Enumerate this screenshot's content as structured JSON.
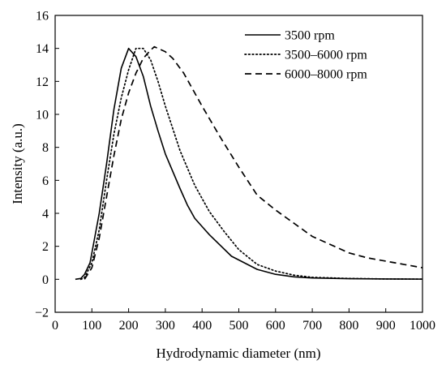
{
  "chart_data": {
    "type": "line",
    "xlabel": "Hydrodynamic diameter (nm)",
    "ylabel": "Intensity (a.u.)",
    "xlim": [
      0,
      1000
    ],
    "ylim": [
      -2,
      16
    ],
    "xticks": [
      0,
      100,
      200,
      300,
      400,
      500,
      600,
      700,
      800,
      900,
      1000
    ],
    "yticks": [
      -2,
      0,
      2,
      4,
      6,
      8,
      10,
      12,
      14,
      16
    ],
    "grid": false,
    "legend_position": "top-right",
    "series": [
      {
        "name": "3500 rpm",
        "line_style": "solid",
        "x": [
          55,
          70,
          80,
          95,
          120,
          140,
          160,
          180,
          200,
          220,
          240,
          260,
          280,
          300,
          340,
          360,
          380,
          420,
          480,
          550,
          600,
          650,
          700,
          800,
          900,
          1000
        ],
        "y": [
          0,
          0.05,
          0.3,
          1.0,
          4.0,
          7.0,
          10.3,
          12.8,
          14.0,
          13.5,
          12.3,
          10.5,
          9.0,
          7.6,
          5.5,
          4.5,
          3.7,
          2.7,
          1.4,
          0.6,
          0.3,
          0.15,
          0.08,
          0.04,
          0.02,
          0.01
        ]
      },
      {
        "name": "3500–6000 rpm",
        "line_style": "dotted",
        "x": [
          70,
          80,
          100,
          120,
          140,
          160,
          180,
          200,
          220,
          240,
          260,
          280,
          300,
          340,
          380,
          420,
          460,
          500,
          550,
          600,
          650,
          700,
          800,
          900,
          1000
        ],
        "y": [
          0,
          0.1,
          1.0,
          3.0,
          6.0,
          8.8,
          11.0,
          12.7,
          14.0,
          14.0,
          13.3,
          12.0,
          10.5,
          7.8,
          5.7,
          4.1,
          2.9,
          1.8,
          0.9,
          0.5,
          0.25,
          0.12,
          0.05,
          0.02,
          0.01
        ]
      },
      {
        "name": "6000–8000 rpm",
        "line_style": "dashed",
        "x": [
          80,
          100,
          120,
          140,
          160,
          180,
          200,
          220,
          240,
          260,
          270,
          280,
          300,
          320,
          350,
          400,
          450,
          500,
          550,
          600,
          650,
          700,
          750,
          800,
          850,
          900,
          950,
          1000
        ],
        "y": [
          0,
          0.7,
          2.5,
          5.0,
          7.5,
          9.7,
          11.3,
          12.5,
          13.4,
          13.9,
          14.1,
          14.0,
          13.8,
          13.4,
          12.5,
          10.5,
          8.6,
          6.8,
          5.1,
          4.2,
          3.4,
          2.6,
          2.1,
          1.6,
          1.3,
          1.1,
          0.9,
          0.7
        ]
      }
    ]
  }
}
